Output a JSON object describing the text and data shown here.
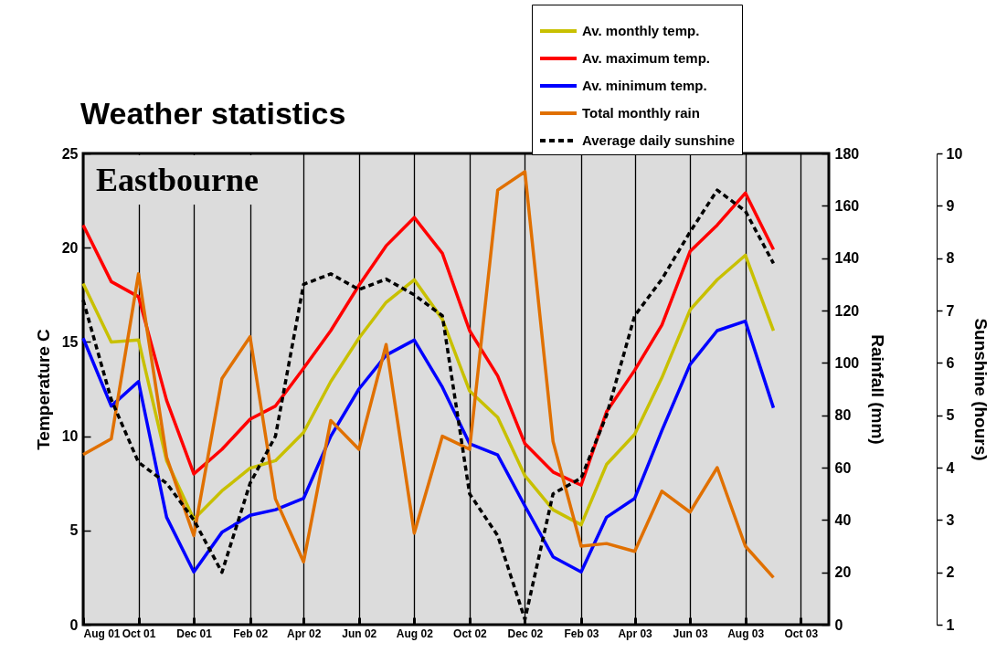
{
  "chart_data": {
    "type": "line",
    "title": "Weather statistics",
    "ylabel": "Temperature    C",
    "y2label": "Rainfall (mm)",
    "y3label": "Sunshine (hours)",
    "annotations": [
      "Eastbourne"
    ],
    "x": [
      "2001-08",
      "2001-09",
      "2001-10",
      "2001-11",
      "2001-12",
      "2002-01",
      "2002-02",
      "2002-03",
      "2002-04",
      "2002-05",
      "2002-06",
      "2002-07",
      "2002-08",
      "2002-09",
      "2002-10",
      "2002-11",
      "2002-12",
      "2003-01",
      "2003-02",
      "2003-03",
      "2003-04",
      "2003-05",
      "2003-06",
      "2003-07",
      "2003-08",
      "2003-09"
    ],
    "xlim": [
      "2001-08",
      "2003-11"
    ],
    "xticks": [
      {
        "value": "2001-08",
        "label": "Aug 01"
      },
      {
        "value": "2001-10",
        "label": "Oct 01"
      },
      {
        "value": "2001-12",
        "label": "Dec 01"
      },
      {
        "value": "2002-02",
        "label": "Feb 02"
      },
      {
        "value": "2002-04",
        "label": "Apr 02"
      },
      {
        "value": "2002-06",
        "label": "Jun 02"
      },
      {
        "value": "2002-08",
        "label": "Aug 02"
      },
      {
        "value": "2002-10",
        "label": "Oct 02"
      },
      {
        "value": "2002-12",
        "label": "Dec 02"
      },
      {
        "value": "2003-02",
        "label": "Feb 03"
      },
      {
        "value": "2003-04",
        "label": "Apr 03"
      },
      {
        "value": "2003-06",
        "label": "Jun 03"
      },
      {
        "value": "2003-08",
        "label": "Aug 03"
      },
      {
        "value": "2003-10",
        "label": "Oct 03"
      }
    ],
    "ylim": [
      0,
      25
    ],
    "yticks": [
      0,
      5,
      10,
      15,
      20,
      25
    ],
    "y2lim": [
      0,
      180
    ],
    "y2ticks": [
      0,
      20,
      40,
      60,
      80,
      100,
      120,
      140,
      160,
      180
    ],
    "y3lim": [
      1,
      10
    ],
    "y3ticks": [
      1,
      2,
      3,
      4,
      5,
      6,
      7,
      8,
      9,
      10
    ],
    "grid": "x",
    "legend": "top right",
    "marker": "none",
    "series": [
      {
        "name": "Av. monthly temp.",
        "color": "#c8c000",
        "values": [
          18.1,
          15.0,
          15.1,
          8.7,
          5.6,
          7.1,
          8.3,
          8.7,
          10.2,
          12.9,
          15.2,
          17.1,
          18.3,
          16.2,
          12.4,
          11.0,
          7.9,
          6.1,
          5.3,
          8.5,
          10.1,
          13.1,
          16.7,
          18.3,
          19.6,
          15.6
        ]
      },
      {
        "name": "Av. maximum temp.",
        "color": "#ff0000",
        "values": [
          21.2,
          18.2,
          17.4,
          11.9,
          8.0,
          9.3,
          10.9,
          11.6,
          13.6,
          15.6,
          18.0,
          20.1,
          21.6,
          19.7,
          15.6,
          13.2,
          9.6,
          8.1,
          7.4,
          11.3,
          13.5,
          15.9,
          19.8,
          21.2,
          22.9,
          19.9
        ]
      },
      {
        "name": "Av. minimum temp.",
        "color": "#0000ff",
        "values": [
          15.2,
          11.6,
          12.9,
          5.7,
          2.8,
          4.9,
          5.8,
          6.1,
          6.7,
          10.0,
          12.5,
          14.3,
          15.1,
          12.6,
          9.6,
          9.0,
          6.3,
          3.6,
          2.8,
          5.7,
          6.7,
          10.3,
          13.8,
          15.6,
          16.1,
          11.5
        ]
      },
      {
        "name": "Total monthly rain",
        "color": "#e07000",
        "axis": "y2",
        "values": [
          65,
          71,
          134,
          64,
          34,
          94,
          110,
          48,
          24,
          78,
          67,
          107,
          35,
          72,
          67,
          166,
          173,
          70,
          30,
          31,
          28,
          51,
          43,
          60,
          30,
          18
        ]
      },
      {
        "name": "Average daily sunshine",
        "color": "#000000",
        "axis": "y3",
        "line_style": "dashed",
        "values": [
          7.2,
          5.3,
          4.1,
          3.7,
          3.0,
          2.0,
          3.7,
          4.6,
          7.5,
          7.7,
          7.4,
          7.6,
          7.3,
          6.9,
          3.5,
          2.7,
          1.1,
          3.5,
          3.8,
          5.0,
          6.9,
          7.6,
          8.5,
          9.3,
          8.9,
          7.9
        ]
      }
    ]
  }
}
